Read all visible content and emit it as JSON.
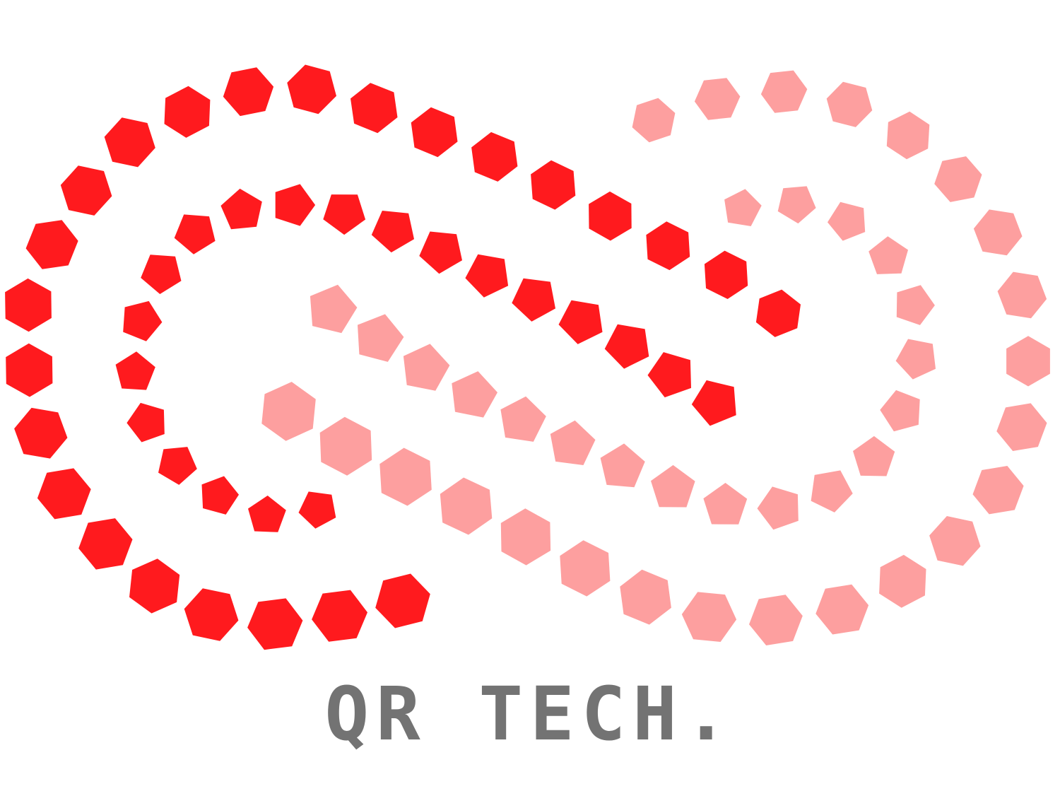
{
  "logo": {
    "wordmark": "QR TECH.",
    "colors": {
      "primary_red": "#ff1a1e",
      "light_red": "#fd9f9f",
      "wordmark_gray": "#737373",
      "background": "#ffffff"
    }
  }
}
